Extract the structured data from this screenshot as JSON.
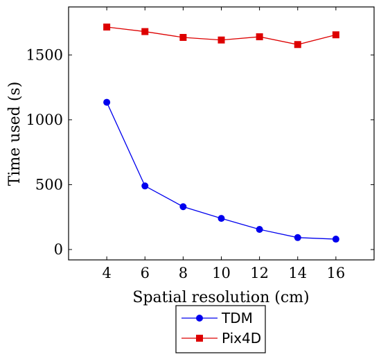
{
  "chart_data": {
    "type": "line",
    "title": "",
    "xlabel": "Spatial resolution (cm)",
    "ylabel": "Time used (s)",
    "x": [
      4,
      6,
      8,
      10,
      12,
      14,
      16
    ],
    "x_ticks": [
      "4",
      "6",
      "8",
      "10",
      "12",
      "14",
      "16"
    ],
    "y_ticks": [
      "0",
      "500",
      "1000",
      "1500"
    ],
    "xlim": [
      2,
      18
    ],
    "ylim": [
      -80,
      1870
    ],
    "grid": false,
    "legend_position": "bottom-center",
    "series": [
      {
        "name": "TDM",
        "values": [
          1135,
          490,
          330,
          240,
          155,
          92,
          80
        ],
        "color": "#0000ee",
        "marker": "circle"
      },
      {
        "name": "Pix4D",
        "values": [
          1715,
          1680,
          1635,
          1615,
          1640,
          1580,
          1655
        ],
        "color": "#dd0000",
        "marker": "square"
      }
    ]
  }
}
